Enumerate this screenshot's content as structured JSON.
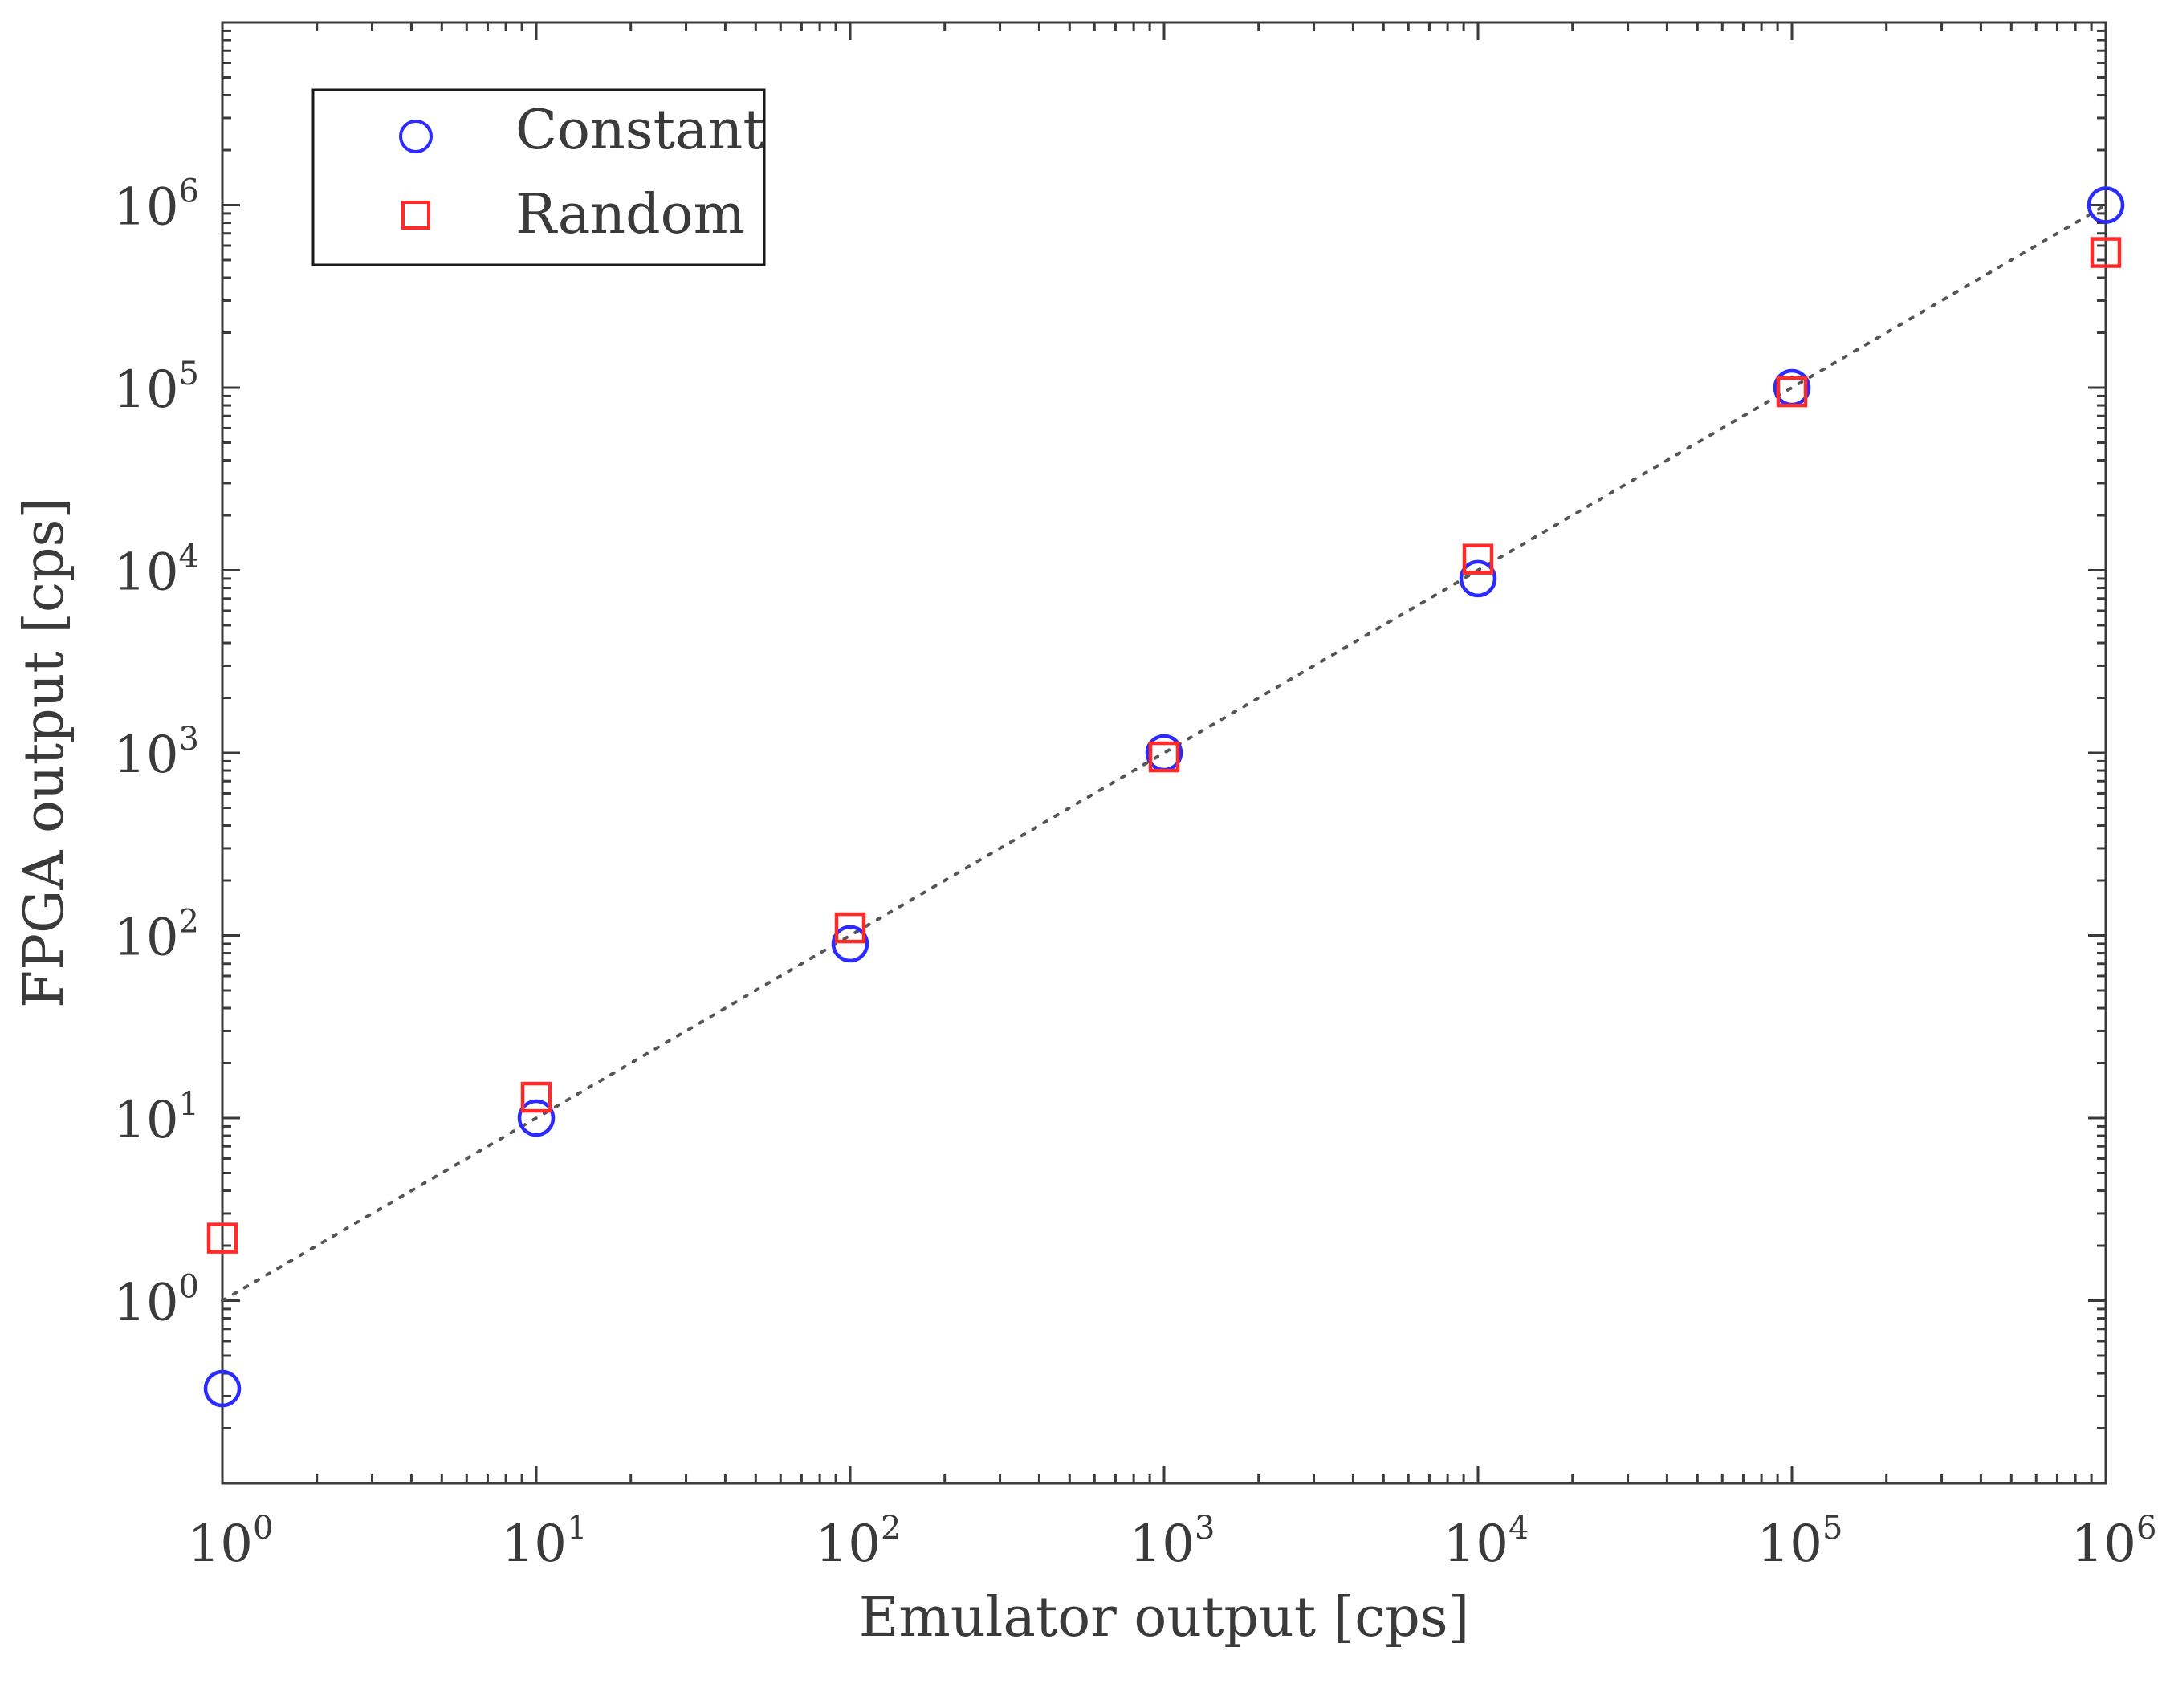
{
  "chart_data": {
    "type": "scatter",
    "xscale": "log",
    "yscale": "log",
    "xlabel": "Emulator output [cps]",
    "ylabel": "FPGA output [cps]",
    "xlim": [
      1,
      1000000
    ],
    "ylim": [
      0.1,
      10000000
    ],
    "x_ticks": [
      {
        "value": 1,
        "base": "10",
        "exp": "0"
      },
      {
        "value": 10,
        "base": "10",
        "exp": "1"
      },
      {
        "value": 100,
        "base": "10",
        "exp": "2"
      },
      {
        "value": 1000,
        "base": "10",
        "exp": "3"
      },
      {
        "value": 10000,
        "base": "10",
        "exp": "4"
      },
      {
        "value": 100000,
        "base": "10",
        "exp": "5"
      },
      {
        "value": 1000000,
        "base": "10",
        "exp": "6"
      }
    ],
    "y_ticks": [
      {
        "value": 1,
        "base": "10",
        "exp": "0"
      },
      {
        "value": 10,
        "base": "10",
        "exp": "1"
      },
      {
        "value": 100,
        "base": "10",
        "exp": "2"
      },
      {
        "value": 1000,
        "base": "10",
        "exp": "3"
      },
      {
        "value": 10000,
        "base": "10",
        "exp": "4"
      },
      {
        "value": 100000,
        "base": "10",
        "exp": "5"
      },
      {
        "value": 1000000,
        "base": "10",
        "exp": "6"
      }
    ],
    "series": [
      {
        "name": "Constant",
        "marker": "circle",
        "color": "#2b2bff",
        "x": [
          1,
          10,
          100,
          1000,
          10000,
          100000,
          1000000
        ],
        "y": [
          0.33,
          10,
          90,
          1000,
          9000,
          100000,
          1000000
        ]
      },
      {
        "name": "Random",
        "marker": "square",
        "color": "#ff2b2b",
        "x": [
          1,
          10,
          100,
          1000,
          10000,
          100000,
          1000000
        ],
        "y": [
          2.2,
          13,
          110,
          950,
          11500,
          95000,
          550000
        ]
      }
    ],
    "reference_line": {
      "name": "y = x",
      "style": "dotted",
      "color": "#555555",
      "x": [
        1,
        1000000
      ],
      "y": [
        1,
        1000000
      ]
    },
    "legend": {
      "position": "top-left"
    },
    "grid": false
  }
}
